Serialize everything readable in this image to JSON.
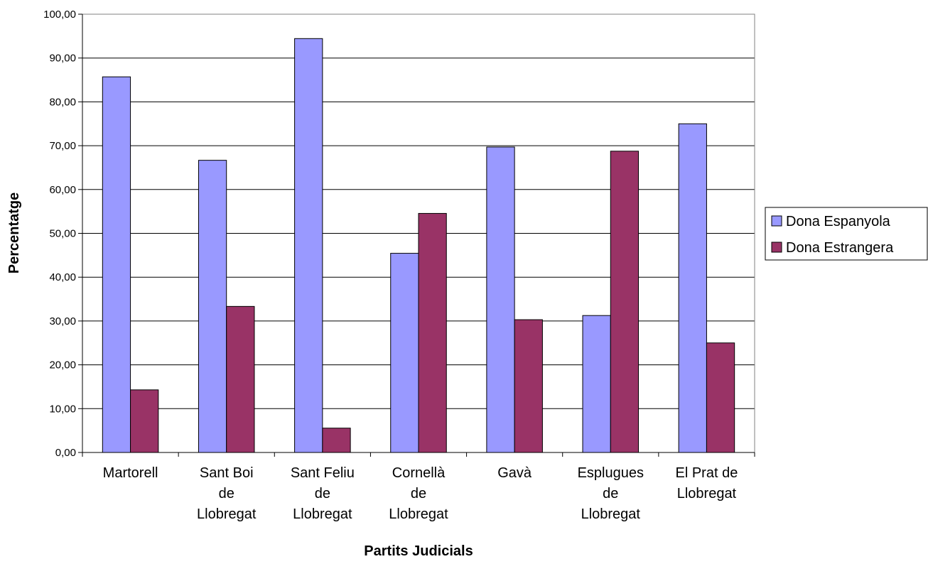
{
  "chart_data": {
    "type": "bar",
    "title": "",
    "xlabel": "Partits Judicials",
    "ylabel": "Percentatge",
    "ylim": [
      0,
      100
    ],
    "yticks": [
      "0,00",
      "10,00",
      "20,00",
      "30,00",
      "40,00",
      "50,00",
      "60,00",
      "70,00",
      "80,00",
      "90,00",
      "100,00"
    ],
    "grid": true,
    "legend_position": "right",
    "categories": [
      [
        "Martorell"
      ],
      [
        "Sant Boi",
        "de",
        "Llobregat"
      ],
      [
        "Sant Feliu",
        "de",
        "Llobregat"
      ],
      [
        "Cornellà",
        "de",
        "Llobregat"
      ],
      [
        "Gavà"
      ],
      [
        "Esplugues",
        "de",
        "Llobregat"
      ],
      [
        "El Prat de",
        "Llobregat"
      ]
    ],
    "series": [
      {
        "name": "Dona Espanyola",
        "color": "#9999ff",
        "values": [
          85.71,
          66.67,
          94.44,
          45.45,
          69.7,
          31.25,
          75.0
        ]
      },
      {
        "name": "Dona Estrangera",
        "color": "#993366",
        "values": [
          14.29,
          33.33,
          5.56,
          54.55,
          30.3,
          68.75,
          25.0
        ]
      }
    ]
  }
}
